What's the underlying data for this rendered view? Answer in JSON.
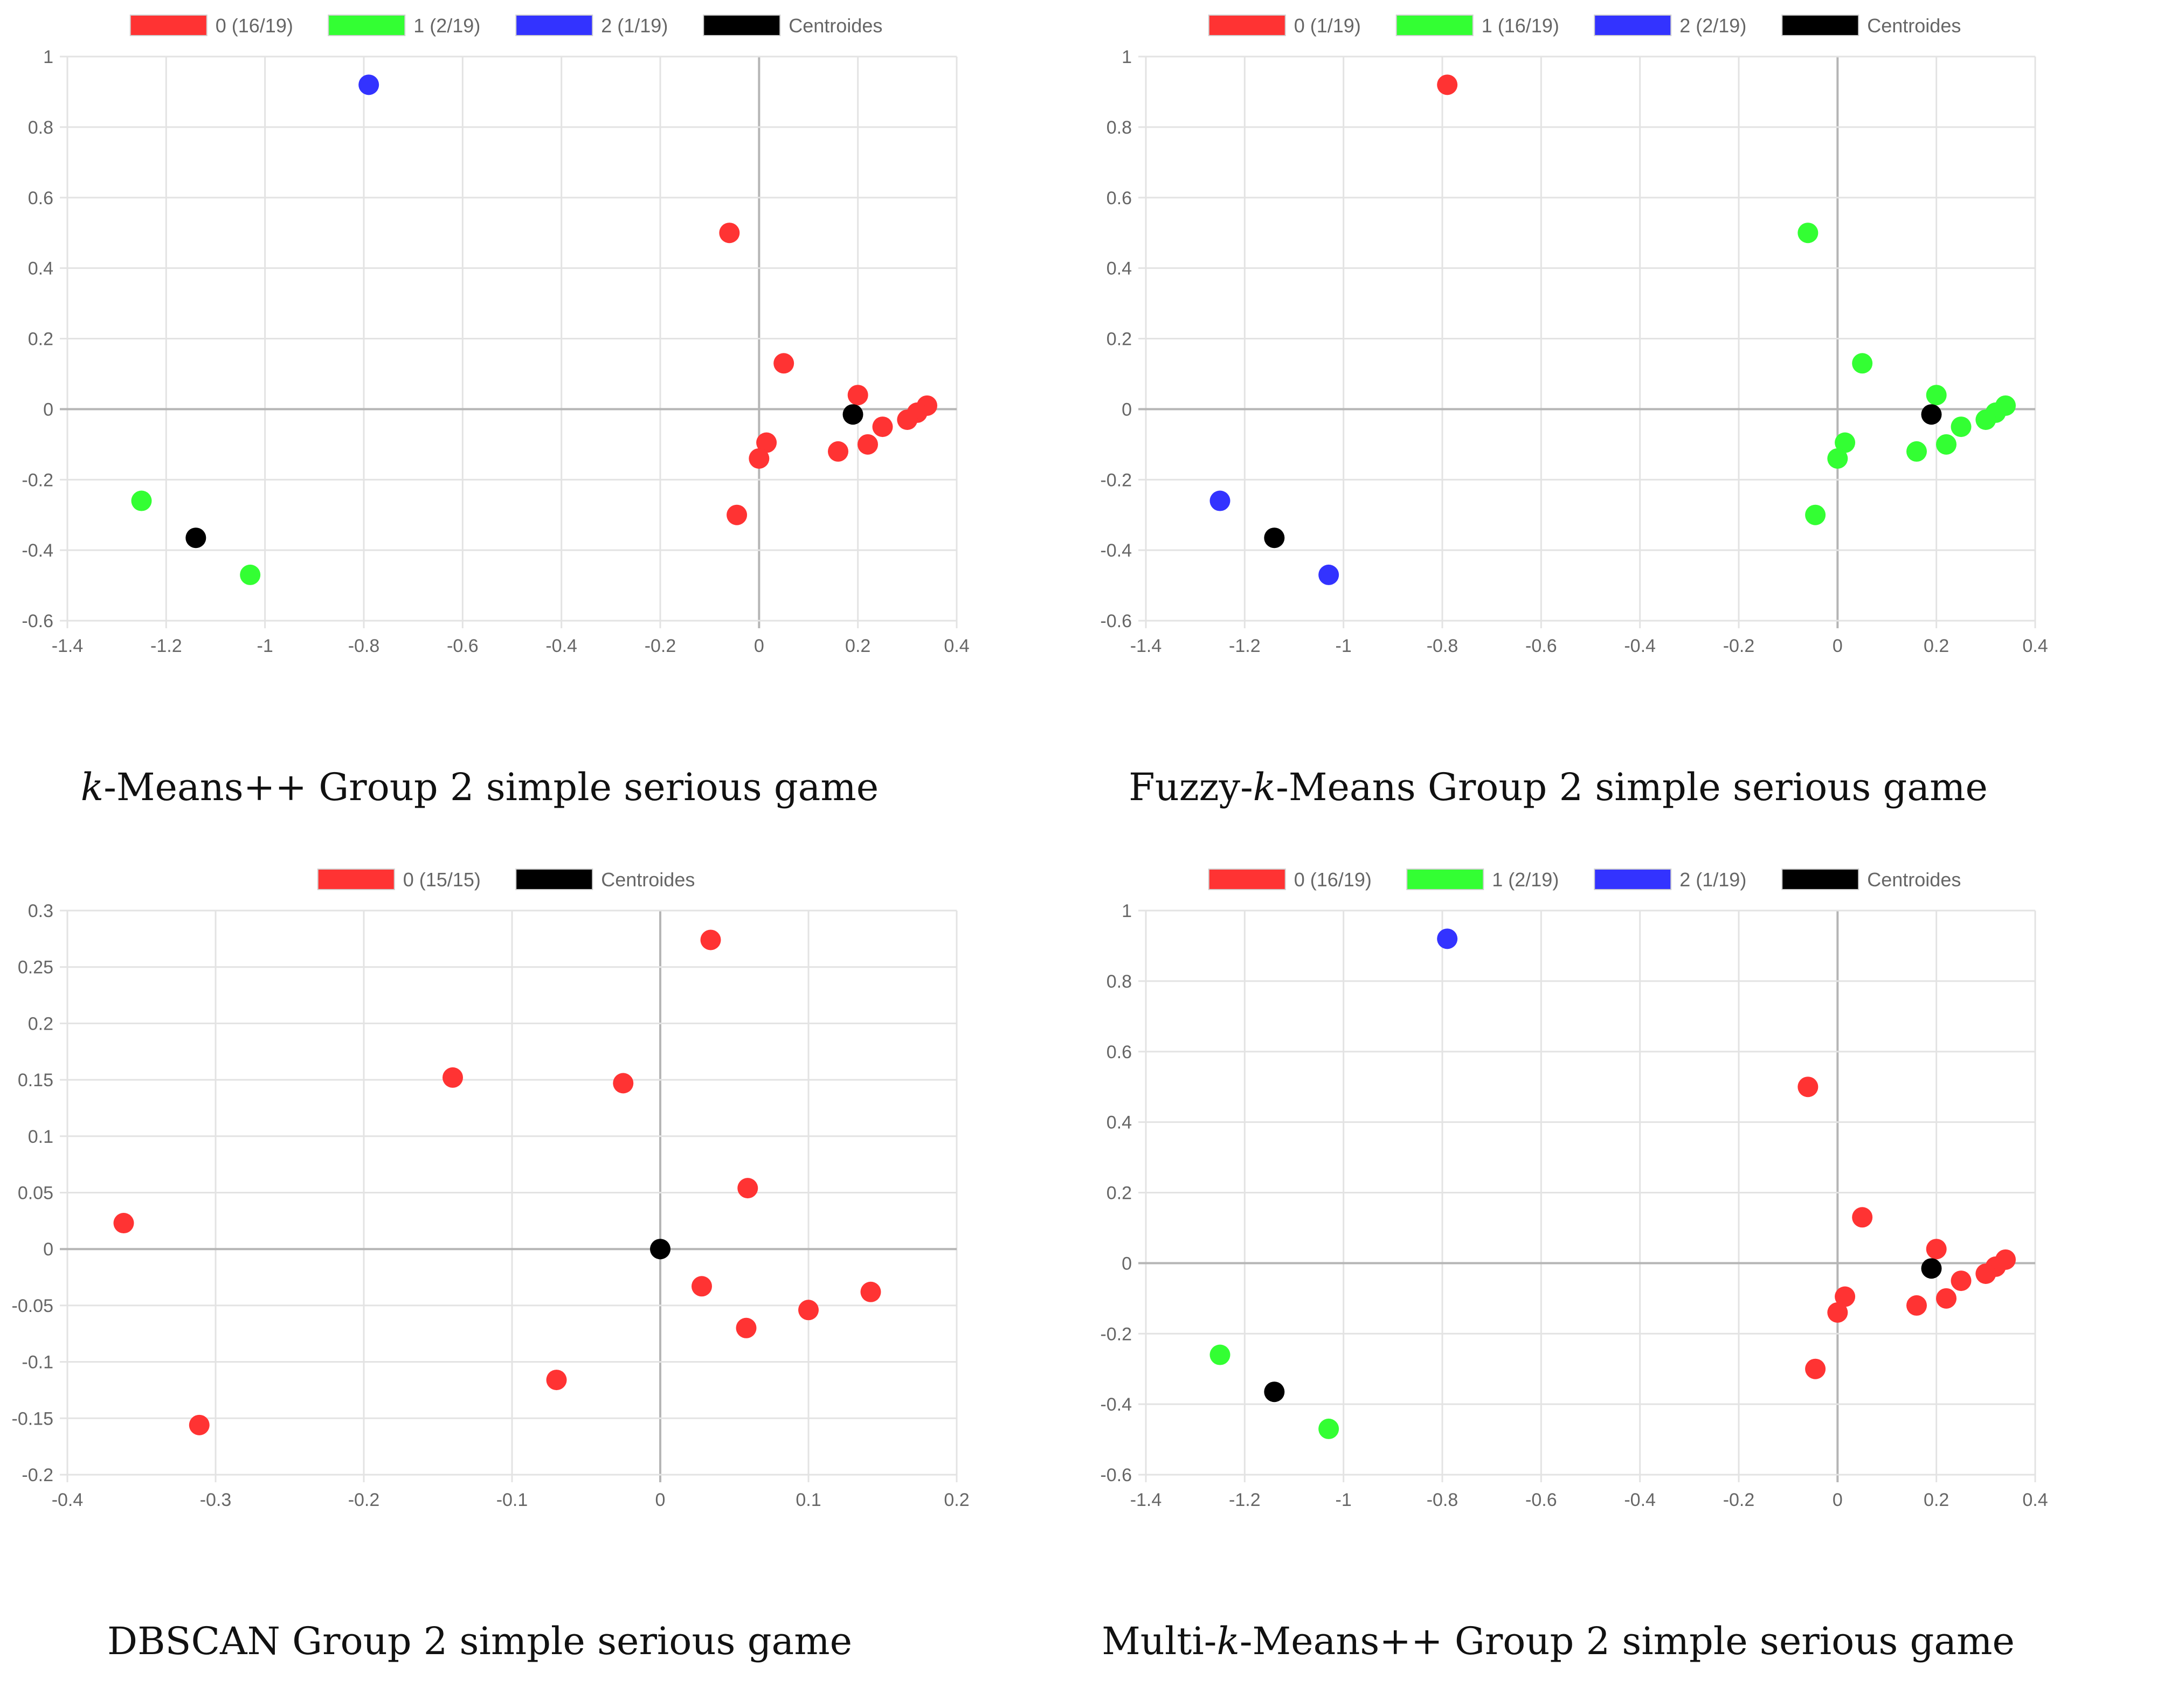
{
  "chart_data": [
    {
      "type": "scatter",
      "caption_pre": "",
      "caption_em": "k",
      "caption_post": "-Means++ Group 2 simple serious game",
      "xlim": [
        -1.4,
        0.4
      ],
      "ylim": [
        -0.6,
        1
      ],
      "xticks": [
        -1.4,
        -1.2,
        -1,
        -0.8,
        -0.6,
        -0.4,
        -0.2,
        0,
        0.2,
        0.4
      ],
      "yticks": [
        -0.6,
        -0.4,
        -0.2,
        0,
        0.2,
        0.4,
        0.6,
        0.8,
        1
      ],
      "legend": "top-center",
      "series": [
        {
          "name": "0 (16/19)",
          "color": "#ff3333",
          "points": [
            [
              -0.06,
              0.5
            ],
            [
              0.05,
              0.13
            ],
            [
              0.2,
              0.04
            ],
            [
              0.34,
              0.01
            ],
            [
              0.32,
              -0.01
            ],
            [
              0.3,
              -0.03
            ],
            [
              0.25,
              -0.05
            ],
            [
              0.22,
              -0.1
            ],
            [
              0.16,
              -0.12
            ],
            [
              0.015,
              -0.095
            ],
            [
              0.0,
              -0.14
            ],
            [
              -0.045,
              -0.3
            ]
          ]
        },
        {
          "name": "1 (2/19)",
          "color": "#33ff33",
          "points": [
            [
              -1.25,
              -0.26
            ],
            [
              -1.03,
              -0.47
            ]
          ]
        },
        {
          "name": "2 (1/19)",
          "color": "#3333ff",
          "points": [
            [
              -0.79,
              0.92
            ]
          ]
        },
        {
          "name": "Centroides",
          "color": "#000000",
          "points": [
            [
              0.19,
              -0.015
            ],
            [
              -1.14,
              -0.365
            ]
          ]
        }
      ]
    },
    {
      "type": "scatter",
      "caption_pre": "Fuzzy-",
      "caption_em": "k",
      "caption_post": "-Means Group 2 simple serious game",
      "xlim": [
        -1.4,
        0.4
      ],
      "ylim": [
        -0.6,
        1
      ],
      "xticks": [
        -1.4,
        -1.2,
        -1,
        -0.8,
        -0.6,
        -0.4,
        -0.2,
        0,
        0.2,
        0.4
      ],
      "yticks": [
        -0.6,
        -0.4,
        -0.2,
        0,
        0.2,
        0.4,
        0.6,
        0.8,
        1
      ],
      "legend": "top-center",
      "series": [
        {
          "name": "0 (1/19)",
          "color": "#ff3333",
          "points": [
            [
              -0.79,
              0.92
            ]
          ]
        },
        {
          "name": "1 (16/19)",
          "color": "#33ff33",
          "points": [
            [
              -0.06,
              0.5
            ],
            [
              0.05,
              0.13
            ],
            [
              0.2,
              0.04
            ],
            [
              0.34,
              0.01
            ],
            [
              0.32,
              -0.01
            ],
            [
              0.3,
              -0.03
            ],
            [
              0.25,
              -0.05
            ],
            [
              0.22,
              -0.1
            ],
            [
              0.16,
              -0.12
            ],
            [
              0.015,
              -0.095
            ],
            [
              0.0,
              -0.14
            ],
            [
              -0.045,
              -0.3
            ]
          ]
        },
        {
          "name": "2 (2/19)",
          "color": "#3333ff",
          "points": [
            [
              -1.25,
              -0.26
            ],
            [
              -1.03,
              -0.47
            ]
          ]
        },
        {
          "name": "Centroides",
          "color": "#000000",
          "points": [
            [
              0.19,
              -0.015
            ],
            [
              -1.14,
              -0.365
            ]
          ]
        }
      ]
    },
    {
      "type": "scatter",
      "caption_pre": "DBSCAN Group 2 simple serious game",
      "caption_em": "",
      "caption_post": "",
      "xlim": [
        -0.4,
        0.2
      ],
      "ylim": [
        -0.2,
        0.3
      ],
      "xticks": [
        -0.4,
        -0.3,
        -0.2,
        -0.1,
        0,
        0.1,
        0.2
      ],
      "yticks": [
        -0.2,
        -0.15,
        -0.1,
        -0.05,
        0,
        0.05,
        0.1,
        0.15,
        0.2,
        0.25,
        0.3
      ],
      "legend": "top-center",
      "series": [
        {
          "name": "0 (15/15)",
          "color": "#ff3333",
          "points": [
            [
              0.034,
              0.274
            ],
            [
              -0.14,
              0.152
            ],
            [
              -0.025,
              0.147
            ],
            [
              0.059,
              0.054
            ],
            [
              -0.362,
              0.023
            ],
            [
              0.028,
              -0.033
            ],
            [
              0.1,
              -0.054
            ],
            [
              0.142,
              -0.038
            ],
            [
              0.058,
              -0.07
            ],
            [
              -0.07,
              -0.116
            ],
            [
              -0.311,
              -0.156
            ]
          ]
        },
        {
          "name": "Centroides",
          "color": "#000000",
          "points": [
            [
              0,
              0
            ]
          ]
        }
      ]
    },
    {
      "type": "scatter",
      "caption_pre": "Multi-",
      "caption_em": "k",
      "caption_post": "-Means++ Group 2 simple serious game",
      "xlim": [
        -1.4,
        0.4
      ],
      "ylim": [
        -0.6,
        1
      ],
      "xticks": [
        -1.4,
        -1.2,
        -1,
        -0.8,
        -0.6,
        -0.4,
        -0.2,
        0,
        0.2,
        0.4
      ],
      "yticks": [
        -0.6,
        -0.4,
        -0.2,
        0,
        0.2,
        0.4,
        0.6,
        0.8,
        1
      ],
      "legend": "top-center",
      "series": [
        {
          "name": "0 (16/19)",
          "color": "#ff3333",
          "points": [
            [
              -0.06,
              0.5
            ],
            [
              0.05,
              0.13
            ],
            [
              0.2,
              0.04
            ],
            [
              0.34,
              0.01
            ],
            [
              0.32,
              -0.01
            ],
            [
              0.3,
              -0.03
            ],
            [
              0.25,
              -0.05
            ],
            [
              0.22,
              -0.1
            ],
            [
              0.16,
              -0.12
            ],
            [
              0.015,
              -0.095
            ],
            [
              0.0,
              -0.14
            ],
            [
              -0.045,
              -0.3
            ]
          ]
        },
        {
          "name": "1 (2/19)",
          "color": "#33ff33",
          "points": [
            [
              -1.25,
              -0.26
            ],
            [
              -1.03,
              -0.47
            ]
          ]
        },
        {
          "name": "2 (1/19)",
          "color": "#3333ff",
          "points": [
            [
              -0.79,
              0.92
            ]
          ]
        },
        {
          "name": "Centroides",
          "color": "#000000",
          "points": [
            [
              0.19,
              -0.015
            ],
            [
              -1.14,
              -0.365
            ]
          ]
        }
      ]
    }
  ]
}
